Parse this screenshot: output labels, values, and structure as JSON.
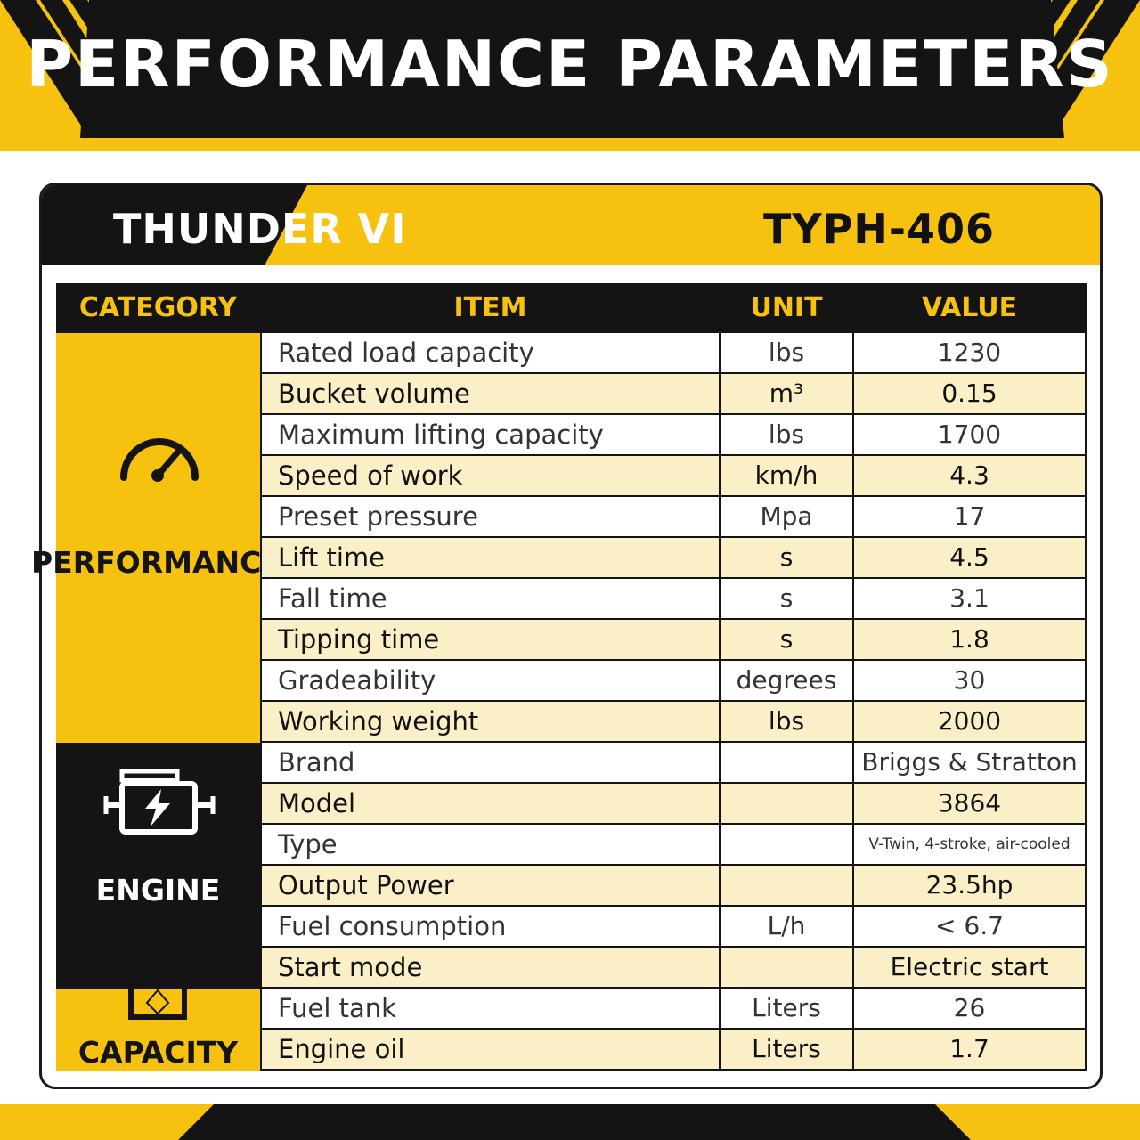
{
  "banner": {
    "title": "PERFORMANCE PARAMETERS"
  },
  "card": {
    "model_name": "THUNDER VI",
    "model_code": "TYPH-406"
  },
  "table": {
    "headers": {
      "category": "CATEGORY",
      "item": "ITEM",
      "unit": "UNIT",
      "value": "VALUE"
    },
    "categories": {
      "performance": {
        "label": "PERFORMANCE",
        "icon": "gauge-icon"
      },
      "engine": {
        "label": "ENGINE",
        "icon": "engine-icon"
      },
      "capacity": {
        "label": "CAPACITY",
        "icon": "tank-icon"
      }
    },
    "rows": [
      {
        "item": "Rated load capacity",
        "unit": "lbs",
        "value": "1230"
      },
      {
        "item": "Bucket volume",
        "unit": "m³",
        "value": "0.15"
      },
      {
        "item": "Maximum lifting capacity",
        "unit": "lbs",
        "value": "1700"
      },
      {
        "item": "Speed of work",
        "unit": "km/h",
        "value": "4.3"
      },
      {
        "item": "Preset pressure",
        "unit": "Mpa",
        "value": "17"
      },
      {
        "item": "Lift time",
        "unit": "s",
        "value": "4.5"
      },
      {
        "item": "Fall time",
        "unit": "s",
        "value": "3.1"
      },
      {
        "item": "Tipping time",
        "unit": "s",
        "value": "1.8"
      },
      {
        "item": "Gradeability",
        "unit": "degrees",
        "value": "30"
      },
      {
        "item": "Working weight",
        "unit": "lbs",
        "value": "2000"
      },
      {
        "item": "Brand",
        "unit": "",
        "value": "Briggs & Stratton"
      },
      {
        "item": "Model",
        "unit": "",
        "value": "3864"
      },
      {
        "item": "Type",
        "unit": "",
        "value": "V-Twin, 4-stroke, air-cooled"
      },
      {
        "item": "Output Power",
        "unit": "",
        "value": "23.5hp"
      },
      {
        "item": "Fuel consumption",
        "unit": "L/h",
        "value": "< 6.7"
      },
      {
        "item": "Start mode",
        "unit": "",
        "value": "Electric start"
      },
      {
        "item": "Fuel tank",
        "unit": "Liters",
        "value": "26"
      },
      {
        "item": "Engine oil",
        "unit": "Liters",
        "value": "1.7"
      }
    ]
  },
  "colors": {
    "accent": "#f6c10f",
    "dark": "#141414",
    "row_alt": "#fbefc7"
  }
}
